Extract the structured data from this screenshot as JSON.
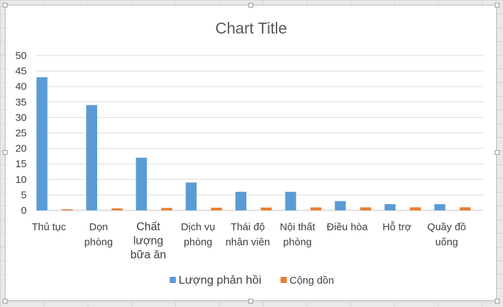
{
  "chart_data": {
    "type": "bar",
    "title": "Chart Title",
    "xlabel": "",
    "ylabel": "",
    "ylim": [
      0,
      50
    ],
    "yticks": [
      0,
      5,
      10,
      15,
      20,
      25,
      30,
      35,
      40,
      45,
      50
    ],
    "grid": true,
    "legend_position": "bottom",
    "categories": [
      [
        "Thủ tục"
      ],
      [
        "Dọn",
        "phòng"
      ],
      [
        "Chất",
        "lượng",
        "bữa ăn"
      ],
      [
        "Dịch vụ",
        "phòng"
      ],
      [
        "Thái độ",
        "nhân viên"
      ],
      [
        "Nội thất",
        "phòng"
      ],
      [
        "Điều hòa"
      ],
      [
        "Hỗ trợ"
      ],
      [
        "Quầy đồ",
        "uống"
      ]
    ],
    "series": [
      {
        "name": "Lượng phản hồi",
        "color": "#5b9bd5",
        "values": [
          43,
          34,
          17,
          9,
          6,
          6,
          3,
          2,
          2
        ]
      },
      {
        "name": "Cộng dồn",
        "color": "#ed7d31",
        "values": [
          0.36,
          0.64,
          0.79,
          0.86,
          0.91,
          0.96,
          0.98,
          1.0,
          1.0
        ]
      }
    ]
  }
}
